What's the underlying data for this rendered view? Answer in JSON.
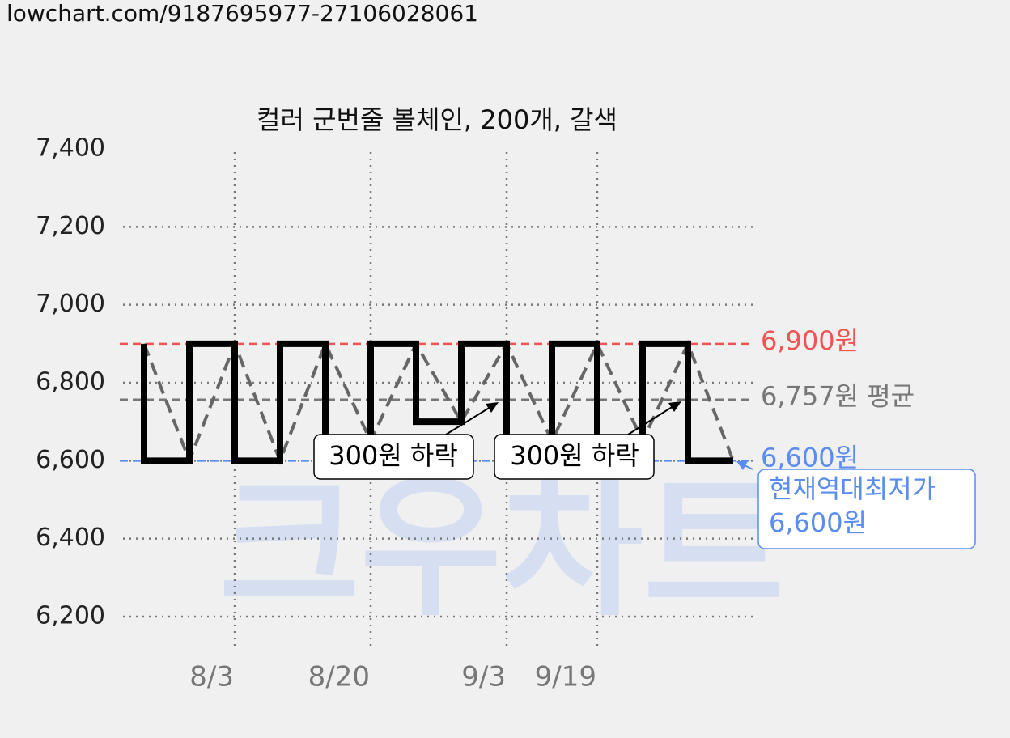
{
  "header": {
    "url": "lowchart.com/9187695977-27106028061"
  },
  "watermark": "크우차트",
  "chart_data": {
    "type": "line",
    "title": "컬러 군번줄 볼체인, 200개, 갈색",
    "categories": [
      null,
      null,
      "8/3",
      null,
      null,
      "8/20",
      null,
      null,
      "9/3",
      null,
      "9/19",
      null,
      null,
      null
    ],
    "series": [
      {
        "color": "#000000",
        "trend_color": "#666666",
        "values": [
          6900,
          6600,
          6900,
          6600,
          6900,
          6650,
          6900,
          6700,
          6900,
          6650,
          6900,
          6650,
          6900,
          6600
        ]
      }
    ],
    "ylim": [
      6200,
      7400
    ],
    "yticks": [
      {
        "value": 6200,
        "label": "6,200"
      },
      {
        "value": 6400,
        "label": "6,400"
      },
      {
        "value": 6600,
        "label": "6,600"
      },
      {
        "value": 6800,
        "label": "6,800"
      },
      {
        "value": 7000,
        "label": "7,000"
      },
      {
        "value": 7200,
        "label": "7,200"
      },
      {
        "value": 7400,
        "label": "7,400"
      }
    ],
    "grid": true,
    "reference_lines": [
      {
        "value": 6900,
        "label": "6,900원",
        "color": "#f05454"
      },
      {
        "value": 6757,
        "label": "6,757원 평균",
        "color": "#777777"
      },
      {
        "value": 6600,
        "label": "6,600원",
        "color": "#5b8def"
      }
    ],
    "annotations": [
      {
        "text": "300원 하락"
      },
      {
        "text": "300원 하락"
      }
    ],
    "callout": {
      "lines": [
        "현재역대최저가",
        "6,600원"
      ]
    }
  }
}
